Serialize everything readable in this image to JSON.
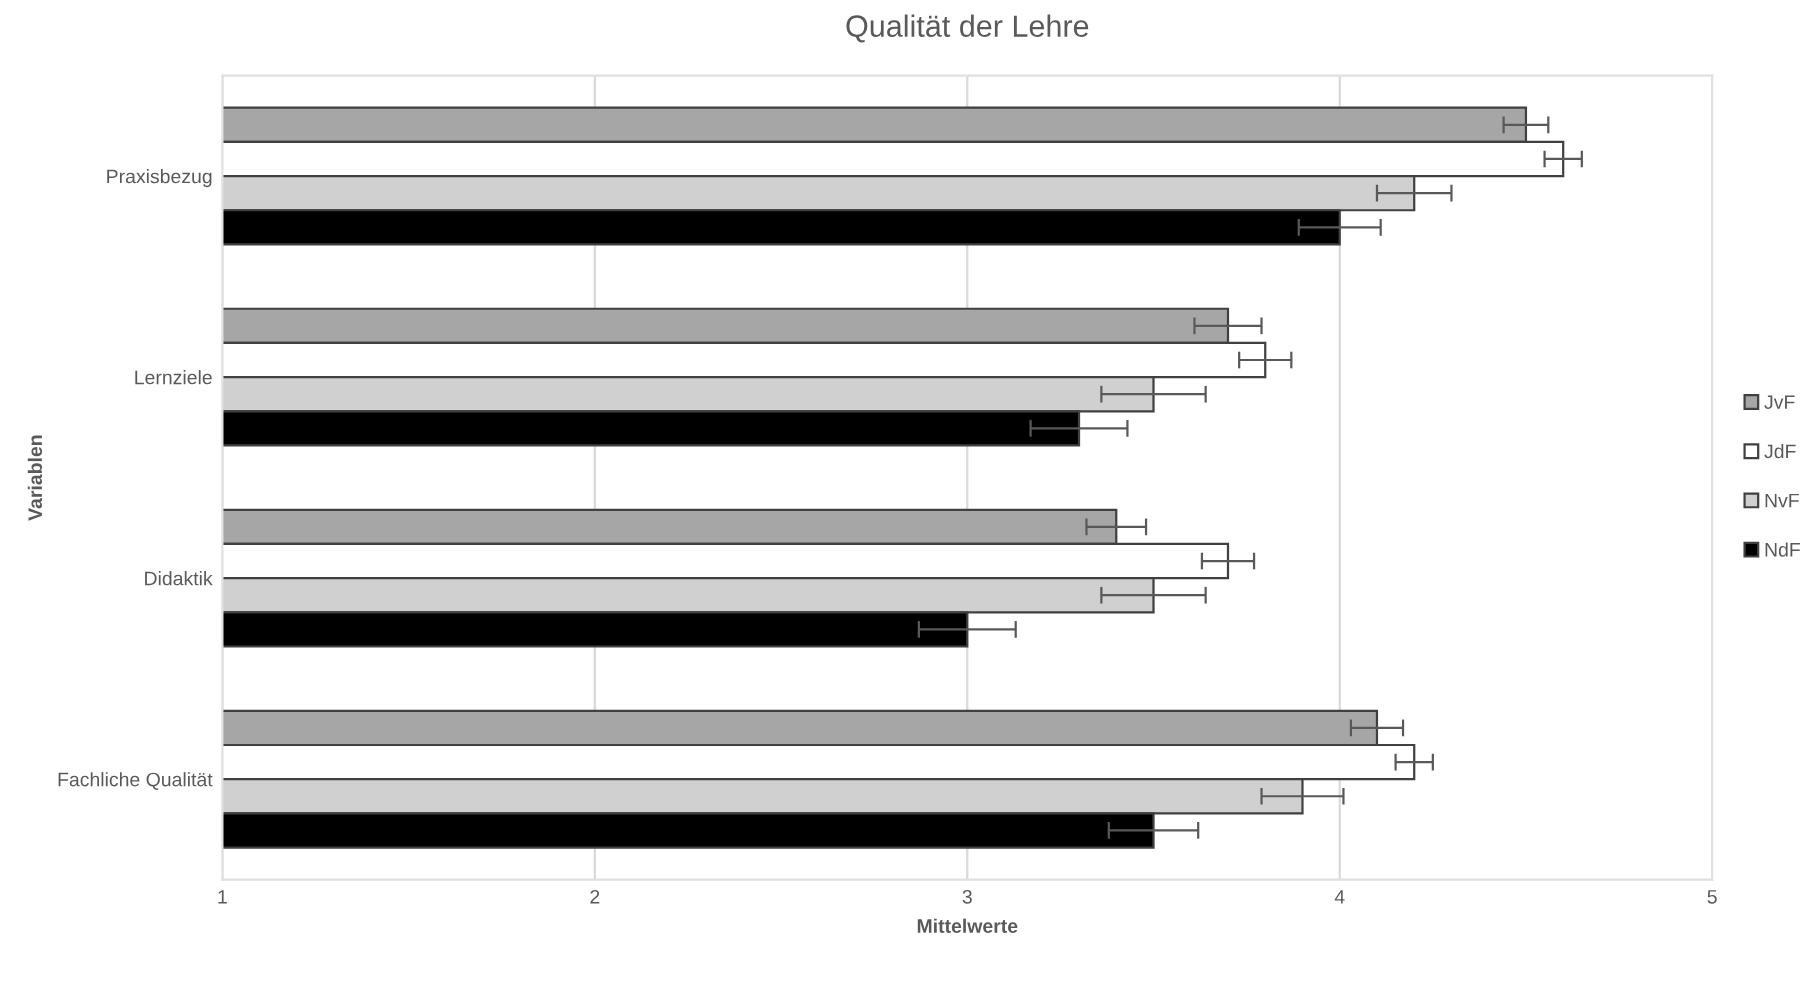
{
  "chart_data": {
    "type": "bar",
    "orientation": "horizontal",
    "title": "Qualität der Lehre",
    "xlabel": "Mittelwerte",
    "ylabel": "Variablen",
    "categories": [
      "Praxisbezug",
      "Lernziele",
      "Didaktik",
      "Fachliche Qualität"
    ],
    "series": [
      {
        "name": "JvF",
        "color": "#a6a6a6",
        "values": [
          4.5,
          3.7,
          3.4,
          4.1
        ],
        "errors": [
          0.06,
          0.09,
          0.08,
          0.07
        ]
      },
      {
        "name": "JdF",
        "color": "#ffffff",
        "values": [
          4.6,
          3.8,
          3.7,
          4.2
        ],
        "errors": [
          0.05,
          0.07,
          0.07,
          0.05
        ]
      },
      {
        "name": "NvF",
        "color": "#d0d0d0",
        "values": [
          4.2,
          3.5,
          3.5,
          3.9
        ],
        "errors": [
          0.1,
          0.14,
          0.14,
          0.11
        ]
      },
      {
        "name": "NdF",
        "color": "#000000",
        "values": [
          4.0,
          3.3,
          3.0,
          3.5
        ],
        "errors": [
          0.11,
          0.13,
          0.13,
          0.12
        ]
      }
    ],
    "xlim": [
      1,
      5
    ],
    "xticks": [
      1,
      2,
      3,
      4,
      5
    ],
    "grid": "x",
    "legend": "right"
  }
}
